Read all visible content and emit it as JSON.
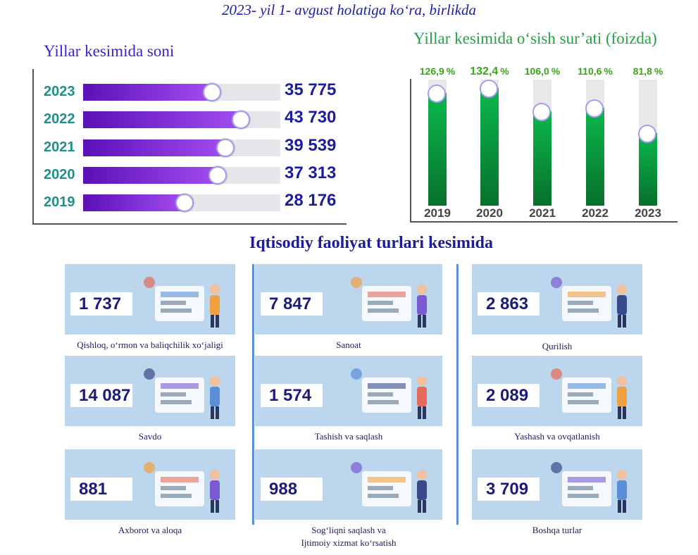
{
  "title": "2023- yil 1- avgust holatiga ko‘ra, birlikda",
  "left_chart": {
    "title": "Yillar kesimida soni",
    "rows": [
      {
        "year": "2023",
        "value": "35 775",
        "num": 35775
      },
      {
        "year": "2022",
        "value": "43 730",
        "num": 43730
      },
      {
        "year": "2021",
        "value": "39 539",
        "num": 39539
      },
      {
        "year": "2020",
        "value": "37 313",
        "num": 37313
      },
      {
        "year": "2019",
        "value": "28 176",
        "num": 28176
      }
    ]
  },
  "right_chart": {
    "title": "Yillar kesimida o‘sish sur’ati (foizda)",
    "bars": [
      {
        "year": "2019",
        "label": "126,9",
        "unit": "%",
        "value": 126.9
      },
      {
        "year": "2020",
        "label": "132,4",
        "unit": "%",
        "value": 132.4
      },
      {
        "year": "2021",
        "label": "106,0",
        "unit": "%",
        "value": 106.0
      },
      {
        "year": "2022",
        "label": "110,6",
        "unit": "%",
        "value": 110.6
      },
      {
        "year": "2023",
        "label": "81,8",
        "unit": "%",
        "value": 81.8
      }
    ]
  },
  "chart_data": [
    {
      "type": "bar",
      "title": "Yillar kesimida soni",
      "categories": [
        "2023",
        "2022",
        "2021",
        "2020",
        "2019"
      ],
      "values": [
        35775,
        43730,
        39539,
        37313,
        28176
      ]
    },
    {
      "type": "bar",
      "title": "Yillar kesimida o‘sish sur’ati (foizda)",
      "categories": [
        "2019",
        "2020",
        "2021",
        "2022",
        "2023"
      ],
      "values": [
        126.9,
        132.4,
        106.0,
        110.6,
        81.8
      ]
    }
  ],
  "section_title": "Iqtisodiy faoliyat turlari kesimida",
  "sectors": [
    {
      "value": "1 737",
      "label": "Qishloq, o‘rmon va baliqchilik xo‘jaligi"
    },
    {
      "value": "7 847",
      "label": "Sanoat"
    },
    {
      "value": "2 863",
      "label": "Qurilish"
    },
    {
      "value": "14 087",
      "label": "Savdo"
    },
    {
      "value": "1 574",
      "label": "Tashish va saqlash"
    },
    {
      "value": "2 089",
      "label": "Yashash va ovqatlanish"
    },
    {
      "value": "881",
      "label": "Axborot va aloqa"
    },
    {
      "value": "988",
      "label": "Sog‘liqni saqlash va",
      "label2": "Ijtimoiy xizmat ko‘rsatish"
    },
    {
      "value": "3 709",
      "label": "Boshqa turlar"
    }
  ]
}
